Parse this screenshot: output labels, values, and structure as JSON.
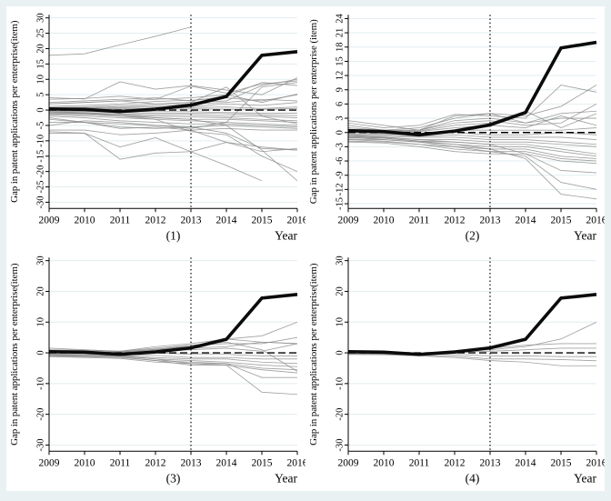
{
  "figure": {
    "frame_color": "#eaf1f3",
    "panel_background": "#ffffff",
    "grid_color": "#e3edf0",
    "axis_color": "#000000",
    "placebo_color": "#8a8a8a",
    "treatment_color": "#0b0b0b"
  },
  "chart_data": [
    {
      "type": "line",
      "panel_label": "(1)",
      "xlabel": "Year",
      "ylabel": "Gap in patent applications per enterprise(item)",
      "x": [
        2009,
        2010,
        2011,
        2012,
        2013,
        2014,
        2015,
        2016
      ],
      "ylim": [
        -32,
        31
      ],
      "yticks": [
        -30,
        -25,
        -20,
        -15,
        -10,
        -5,
        0,
        5,
        10,
        15,
        20,
        25,
        30
      ],
      "vline_x": 2013,
      "hline_y": 0,
      "legend": "none",
      "grid": "horizontal",
      "treatment": [
        0.4,
        0.2,
        -0.5,
        0.3,
        1.6,
        4.4,
        17.8,
        19
      ],
      "placebos": [
        [
          17.8,
          18.3,
          21.2,
          24,
          27,
          null,
          null,
          null
        ],
        [
          4,
          3.6,
          9.2,
          6.8,
          8,
          6.5,
          5,
          10.5
        ],
        [
          3.5,
          3.8,
          4.5,
          3.5,
          7.8,
          5.5,
          8.5,
          9.5
        ],
        [
          2.5,
          3,
          3.5,
          4,
          3,
          4.5,
          9,
          8
        ],
        [
          2,
          2.5,
          3,
          3.5,
          4,
          5,
          2.5,
          5.2
        ],
        [
          1.2,
          1.5,
          2,
          2.8,
          3.2,
          4,
          3,
          5
        ],
        [
          0.8,
          1,
          1.5,
          2,
          2.5,
          3,
          8,
          10
        ],
        [
          0.5,
          0.8,
          1,
          1.5,
          2,
          2.5,
          3.5,
          3
        ],
        [
          0.3,
          0.5,
          0.8,
          1,
          1.2,
          2,
          1.5,
          2.5
        ],
        [
          0.2,
          0.3,
          0.5,
          0.5,
          0.8,
          1,
          0.5,
          1
        ],
        [
          0,
          0,
          0.2,
          0.3,
          0.4,
          0.3,
          0.2,
          0.5
        ],
        [
          -0.2,
          -0.3,
          -0.5,
          -0.5,
          -0.5,
          -0.8,
          -1,
          -1
        ],
        [
          -0.5,
          -0.5,
          -0.8,
          -1,
          -1,
          -1.2,
          -1.5,
          -1.8
        ],
        [
          -0.8,
          -1,
          -1.2,
          -1.5,
          -1.5,
          -2,
          -2,
          -2.5
        ],
        [
          -1,
          -1.2,
          -1.5,
          -2,
          -2.2,
          -2.5,
          -3,
          -3.5
        ],
        [
          -1.2,
          -1.5,
          -2,
          -2.5,
          -3,
          -3,
          -3.5,
          -4
        ],
        [
          -1.5,
          -2,
          -2.5,
          -3,
          -3.5,
          -4,
          -4.5,
          -5
        ],
        [
          -2,
          -2.5,
          -3.5,
          -4,
          -4.5,
          -4.5,
          -5,
          -5.5
        ],
        [
          -2.5,
          -4,
          -4.5,
          -5,
          -5.5,
          -5,
          -5.5,
          -6
        ],
        [
          -3,
          -4,
          -6,
          -5.5,
          -6.5,
          -6,
          -6.5,
          -6.5
        ],
        [
          -4,
          -4,
          -5.5,
          -6,
          -5.5,
          -7.5,
          -12.5,
          -13
        ],
        [
          -6.5,
          -6.5,
          -8,
          -7.5,
          -6.5,
          -10.5,
          -13.5,
          -12.5
        ],
        [
          -7,
          -7.5,
          -12,
          -9,
          -13.5,
          -10.5,
          -12,
          -13
        ],
        [
          -7.5,
          -7.5,
          -16,
          -14,
          -13.5,
          -18,
          -23,
          null
        ],
        [
          -0.5,
          -1,
          -2,
          -3,
          -7,
          -8,
          -15,
          -20
        ],
        [
          -0.5,
          -0.8,
          -1.5,
          -2.5,
          -3,
          -5,
          -13,
          -23
        ],
        [
          2,
          2.5,
          3,
          2,
          2.5,
          7.5,
          -2,
          -4.5
        ],
        [
          -5,
          -3.5,
          -4,
          -5,
          -6,
          -4,
          7.5,
          9
        ]
      ]
    },
    {
      "type": "line",
      "panel_label": "(2)",
      "xlabel": "Year",
      "ylabel": "Gap in patent applications per enterprise (item)",
      "x": [
        2009,
        2010,
        2011,
        2012,
        2013,
        2014,
        2015,
        2016
      ],
      "ylim": [
        -16,
        24.8
      ],
      "yticks": [
        -15,
        -12,
        -9,
        -6,
        -3,
        0,
        3,
        6,
        9,
        12,
        15,
        18,
        21,
        24
      ],
      "vline_x": 2013,
      "hline_y": 0,
      "legend": "none",
      "grid": "horizontal",
      "treatment": [
        0.4,
        0.2,
        -0.5,
        0.3,
        1.6,
        4.2,
        17.8,
        19
      ],
      "placebos": [
        [
          2.5,
          1.5,
          0.5,
          3.5,
          4,
          2,
          3,
          3
        ],
        [
          2,
          1,
          1.5,
          3.8,
          3.5,
          3,
          10,
          8.5
        ],
        [
          1.5,
          0.5,
          1,
          3,
          4,
          3.5,
          5.5,
          10
        ],
        [
          1,
          0.5,
          0.5,
          2.5,
          3,
          2,
          4,
          4.5
        ],
        [
          0.5,
          0.3,
          0.5,
          2,
          2.5,
          1.5,
          2,
          6
        ],
        [
          0.5,
          0.2,
          0.3,
          1.5,
          2,
          4.5,
          1,
          4
        ],
        [
          0.3,
          0,
          0.2,
          1,
          1.5,
          1,
          3.5,
          1.5
        ],
        [
          0,
          -0.2,
          -0.3,
          0.5,
          0.5,
          0.5,
          0.5,
          1
        ],
        [
          -0.3,
          -0.3,
          -0.5,
          0,
          -0.5,
          -0.5,
          0,
          -0.5
        ],
        [
          -0.5,
          -0.5,
          -0.8,
          -0.5,
          -1,
          -1,
          -1,
          -1.5
        ],
        [
          -0.8,
          -0.8,
          -1,
          -1,
          -1.5,
          -1.5,
          -2,
          -2.5
        ],
        [
          -1,
          -1,
          -1.5,
          -1.5,
          -2,
          -2,
          -2.5,
          -3
        ],
        [
          -1.2,
          -1.2,
          -1.8,
          -2,
          -2.5,
          -2.5,
          -3.5,
          -4.5
        ],
        [
          -1.5,
          -1.5,
          -2,
          -2.5,
          -3,
          -3,
          -4,
          -5
        ],
        [
          -1.5,
          -1.8,
          -2.5,
          -3,
          -3.5,
          -3.5,
          -5,
          -5.5
        ],
        [
          -1.8,
          -2,
          -2.5,
          -3.5,
          -4,
          -4,
          -5.5,
          -6
        ],
        [
          -2,
          -2.2,
          -3,
          -4,
          -4.5,
          -4.5,
          -6,
          -6.5
        ],
        [
          -0.5,
          -1,
          -1.5,
          -2,
          -2.5,
          -4.5,
          -8,
          -8.5
        ],
        [
          -1,
          -1.5,
          -2,
          -3,
          -4,
          -5,
          -10.5,
          -12
        ],
        [
          -0.8,
          -1.2,
          -1.8,
          -2.5,
          -3.5,
          -5.5,
          -13,
          -14
        ]
      ]
    },
    {
      "type": "line",
      "panel_label": "(3)",
      "xlabel": "Year",
      "ylabel": "Gap in patent applications per enterprise(item)",
      "x": [
        2009,
        2010,
        2011,
        2012,
        2013,
        2014,
        2015,
        2016
      ],
      "ylim": [
        -32,
        31
      ],
      "yticks": [
        -30,
        -20,
        -10,
        0,
        10,
        20,
        30
      ],
      "vline_x": 2013,
      "hline_y": 0,
      "legend": "none",
      "grid": "horizontal",
      "treatment": [
        0.4,
        0.2,
        -0.5,
        0.3,
        1.6,
        4.4,
        17.8,
        19
      ],
      "placebos": [
        [
          1.5,
          1,
          0.5,
          2,
          3,
          4.5,
          5.5,
          10
        ],
        [
          1,
          0.8,
          0.5,
          1.5,
          2.5,
          3,
          3,
          5
        ],
        [
          0.8,
          0.5,
          0.3,
          1.2,
          2,
          4.5,
          3.5,
          3
        ],
        [
          0.5,
          0.3,
          0.2,
          1,
          1.5,
          2,
          3.5,
          3
        ],
        [
          0.3,
          0.2,
          0,
          0.5,
          1,
          1.5,
          0.5,
          3
        ],
        [
          0,
          -0.2,
          -0.3,
          0,
          -0.5,
          -0.5,
          -1,
          -1
        ],
        [
          -0.3,
          -0.5,
          -0.5,
          -0.8,
          -1.5,
          -1.5,
          -2,
          -2
        ],
        [
          -0.5,
          -0.8,
          -0.8,
          -1.5,
          -2,
          -2,
          -3,
          -3.5
        ],
        [
          -0.8,
          -1,
          -1,
          -2,
          -2.5,
          -3,
          -4,
          -4.5
        ],
        [
          -1,
          -1.2,
          -1.5,
          -2.5,
          -3,
          -3.5,
          -5,
          -5.5
        ],
        [
          -1.2,
          -1.5,
          -1.8,
          -3,
          -3.5,
          -4,
          -5.5,
          -6.5
        ],
        [
          -0.5,
          -0.8,
          -1,
          -2,
          -3.5,
          -3.5,
          -8,
          -8
        ],
        [
          -0.8,
          -1,
          -1.2,
          -2.5,
          -4,
          -4,
          -12.8,
          -13.5
        ],
        [
          0.5,
          0.3,
          0,
          1,
          2.5,
          3.5,
          1,
          -6
        ]
      ]
    },
    {
      "type": "line",
      "panel_label": "(4)",
      "xlabel": "Year",
      "ylabel": "Gap in patent applications per enterprise(item)",
      "x": [
        2009,
        2010,
        2011,
        2012,
        2013,
        2014,
        2015,
        2016
      ],
      "ylim": [
        -32,
        31
      ],
      "yticks": [
        -30,
        -20,
        -10,
        0,
        10,
        20,
        30
      ],
      "vline_x": 2013,
      "hline_y": 0,
      "legend": "none",
      "grid": "horizontal",
      "treatment": [
        0.4,
        0.2,
        -0.5,
        0.3,
        1.6,
        4.4,
        17.8,
        19
      ],
      "placebos": [
        [
          0.3,
          0.2,
          -0.2,
          0.5,
          1,
          2,
          4.5,
          10
        ],
        [
          0.2,
          0.1,
          -0.3,
          0.5,
          1.5,
          2.5,
          3,
          3
        ],
        [
          0,
          0,
          -0.3,
          0.3,
          0.5,
          1,
          1.5,
          1.5
        ],
        [
          -0.3,
          -0.3,
          -0.5,
          -0.5,
          -1,
          -1,
          -1.2,
          -1.2
        ],
        [
          -0.5,
          -0.5,
          -0.8,
          -1,
          -2,
          -2,
          -2.2,
          -2.6
        ],
        [
          -0.5,
          -0.6,
          -1,
          -1.5,
          -2.5,
          -3,
          -4.2,
          -4.2
        ]
      ]
    }
  ]
}
